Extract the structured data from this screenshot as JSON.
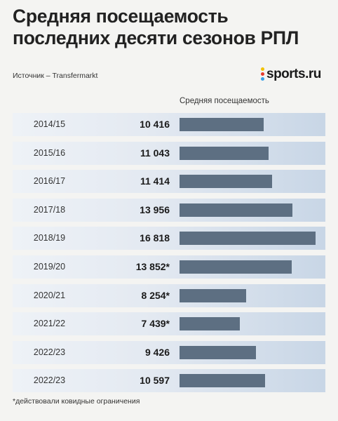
{
  "header": {
    "title_line1": "Средняя посещаемость",
    "title_line2": "последних десяти сезонов РПЛ",
    "source": "Источник – Transfermarkt",
    "logo_text": "sports.ru",
    "logo_dot_colors": [
      "#f2c200",
      "#e53b2e",
      "#3aa0e8"
    ]
  },
  "column_header": "Средняя посещаемость",
  "footnote": "*действовали ковидные ограничения",
  "colors": {
    "bar": "#5d6f82",
    "row_light": "#eef2f7",
    "row_dark": "#c8d6e6"
  },
  "chart_data": {
    "type": "bar",
    "orientation": "horizontal",
    "title": "Средняя посещаемость последних десяти сезонов РПЛ",
    "value_label": "Средняя посещаемость",
    "categories": [
      "2014/15",
      "2015/16",
      "2016/17",
      "2017/18",
      "2018/19",
      "2019/20",
      "2020/21",
      "2021/22",
      "2022/23",
      "2022/23"
    ],
    "values": [
      10416,
      11043,
      11414,
      13956,
      16818,
      13852,
      8254,
      7439,
      9426,
      10597
    ],
    "value_labels": [
      "10 416",
      "11 043",
      "11 414",
      "13 956",
      "16 818",
      "13 852*",
      "8 254*",
      "7 439*",
      "9 426",
      "10 597"
    ],
    "grid": false,
    "legend": "none"
  }
}
